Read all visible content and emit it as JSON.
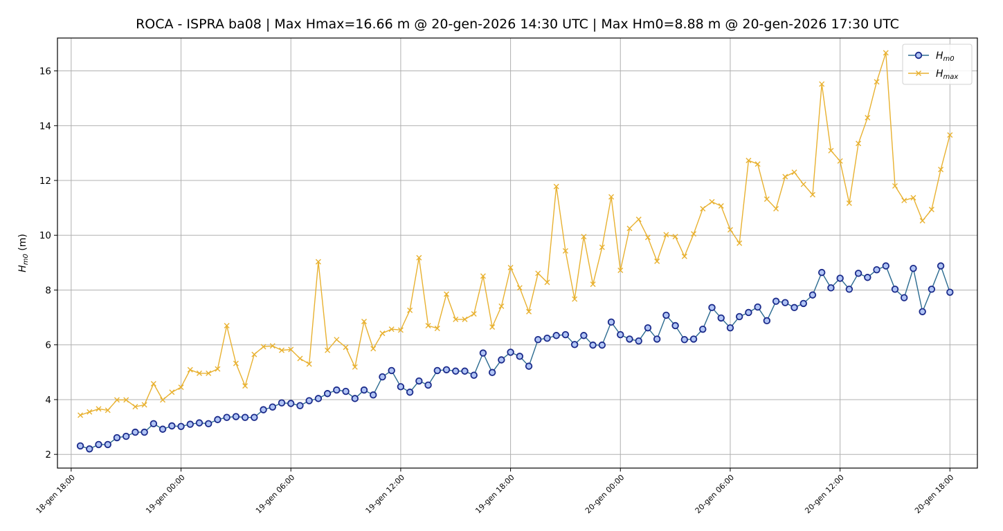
{
  "chart_data": {
    "type": "line",
    "title": "ROCA - ISPRA ba08 | Max Hmax=16.66 m @ 20-gen-2026 14:30 UTC | Max Hm0=8.88 m @ 20-gen-2026 17:30 UTC",
    "xlabel": "",
    "ylabel": {
      "main": "H",
      "sub": "m0",
      "unit": " (m)"
    },
    "ylim": [
      1.5,
      17.2
    ],
    "yticks": [
      2,
      4,
      6,
      8,
      10,
      12,
      14,
      16
    ],
    "x_range_hours": [
      -0.75,
      49.5
    ],
    "xticks": [
      {
        "hour": 0,
        "label": "18-gen 18:00"
      },
      {
        "hour": 6,
        "label": "19-gen 00:00"
      },
      {
        "hour": 12,
        "label": "19-gen 06:00"
      },
      {
        "hour": 18,
        "label": "19-gen 12:00"
      },
      {
        "hour": 24,
        "label": "19-gen 18:00"
      },
      {
        "hour": 30,
        "label": "20-gen 00:00"
      },
      {
        "hour": 36,
        "label": "20-gen 06:00"
      },
      {
        "hour": 42,
        "label": "20-gen 12:00"
      },
      {
        "hour": 48,
        "label": "20-gen 18:00"
      }
    ],
    "x_start_hour": 0.5,
    "x_step_hours": 0.5,
    "grid": true,
    "legend_position": "top-right",
    "series": [
      {
        "name": "Hm0",
        "label_main": "H",
        "label_sub": "m0",
        "color": "#1f77b4",
        "marker": "circle",
        "marker_face": "#b0c4f5",
        "marker_edge": "#1a2a8a",
        "values": [
          2.31,
          2.2,
          2.36,
          2.36,
          2.61,
          2.66,
          2.81,
          2.81,
          3.12,
          2.92,
          3.04,
          3.02,
          3.1,
          3.15,
          3.12,
          3.27,
          3.35,
          3.38,
          3.35,
          3.35,
          3.63,
          3.73,
          3.88,
          3.86,
          3.78,
          3.96,
          4.04,
          4.22,
          4.35,
          4.3,
          4.04,
          4.35,
          4.17,
          4.83,
          5.06,
          4.47,
          4.27,
          4.68,
          4.53,
          5.06,
          5.09,
          5.04,
          5.04,
          4.89,
          5.7,
          4.99,
          5.45,
          5.73,
          5.58,
          5.22,
          6.19,
          6.24,
          6.34,
          6.37,
          6.01,
          6.34,
          5.99,
          5.99,
          6.83,
          6.37,
          6.21,
          6.14,
          6.62,
          6.21,
          7.08,
          6.7,
          6.19,
          6.21,
          6.57,
          7.36,
          6.98,
          6.62,
          7.03,
          7.18,
          7.38,
          6.88,
          7.59,
          7.54,
          7.36,
          7.51,
          7.82,
          8.64,
          8.08,
          8.43,
          8.03,
          8.61,
          8.46,
          8.74,
          8.88,
          8.03,
          7.72,
          8.79,
          7.21,
          8.03,
          8.88,
          7.92
        ]
      },
      {
        "name": "Hmax",
        "label_main": "H",
        "label_sub": "max",
        "color": "#e8b130",
        "marker": "x",
        "values": [
          3.43,
          3.55,
          3.66,
          3.61,
          3.99,
          3.99,
          3.74,
          3.81,
          4.58,
          3.99,
          4.27,
          4.45,
          5.09,
          4.96,
          4.96,
          5.12,
          6.7,
          5.32,
          4.5,
          5.65,
          5.93,
          5.96,
          5.8,
          5.83,
          5.5,
          5.3,
          9.03,
          5.8,
          6.19,
          5.91,
          5.19,
          6.85,
          5.86,
          6.42,
          6.57,
          6.54,
          7.26,
          9.18,
          6.7,
          6.6,
          7.85,
          6.93,
          6.93,
          7.13,
          8.51,
          6.65,
          7.41,
          8.82,
          8.08,
          7.21,
          8.61,
          8.28,
          11.78,
          9.43,
          7.67,
          9.95,
          8.21,
          9.56,
          11.4,
          8.72,
          10.25,
          10.58,
          9.92,
          9.05,
          10.02,
          9.95,
          9.23,
          10.05,
          10.97,
          11.22,
          11.07,
          10.2,
          9.71,
          12.73,
          12.6,
          11.32,
          10.97,
          12.14,
          12.3,
          11.86,
          11.48,
          15.52,
          13.09,
          12.71,
          11.17,
          13.35,
          14.29,
          15.6,
          16.66,
          11.8,
          11.27,
          11.37,
          10.53,
          10.94,
          12.4,
          13.66
        ]
      }
    ]
  }
}
